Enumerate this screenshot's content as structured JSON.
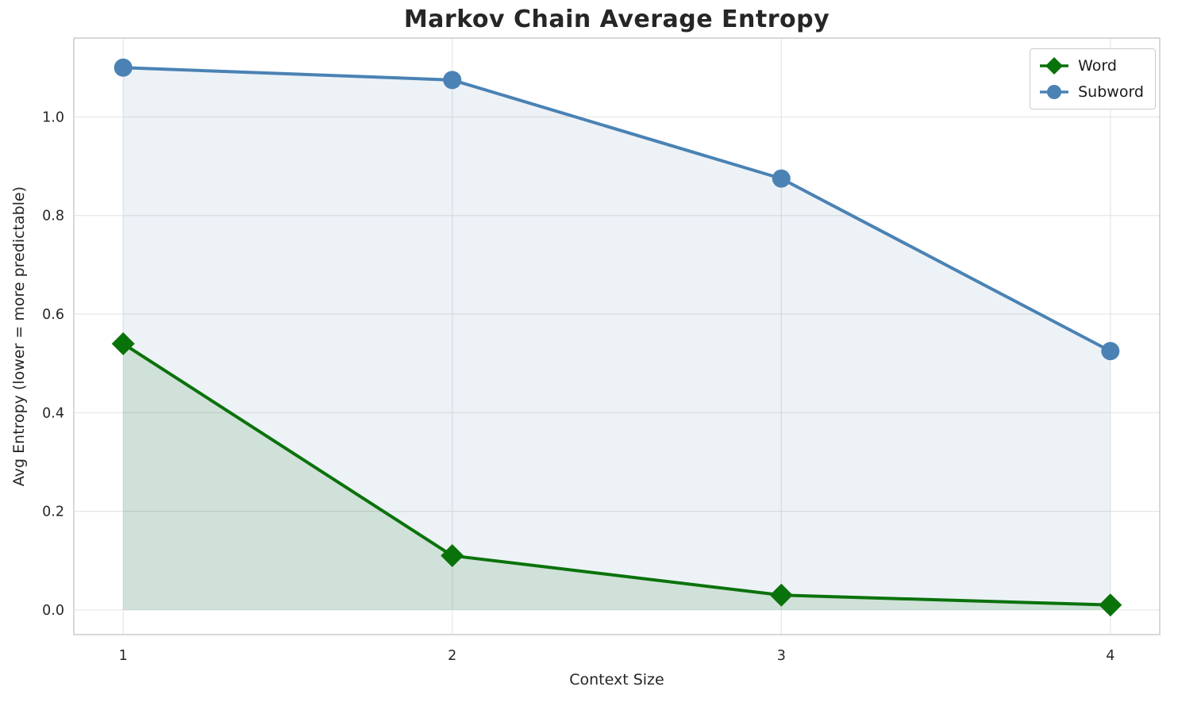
{
  "chart_data": {
    "type": "line",
    "title": "Markov Chain Average Entropy",
    "xlabel": "Context Size",
    "ylabel": "Avg Entropy (lower = more predictable)",
    "x": [
      1,
      2,
      3,
      4
    ],
    "series": [
      {
        "name": "Word",
        "values": [
          0.54,
          0.11,
          0.03,
          0.01
        ],
        "color": "#0a720a",
        "marker": "diamond",
        "fill_opacity": 0.13,
        "line_width": 4
      },
      {
        "name": "Subword",
        "values": [
          1.1,
          1.075,
          0.875,
          0.525
        ],
        "color": "#4a82b4",
        "marker": "circle",
        "fill_opacity": 0.1,
        "line_width": 4
      }
    ],
    "xlim": [
      0.85,
      4.15
    ],
    "ylim": [
      -0.05,
      1.16
    ],
    "xticks": [
      1,
      2,
      3,
      4
    ],
    "xtick_labels": [
      "1",
      "2",
      "3",
      "4"
    ],
    "yticks": [
      0,
      0.2,
      0.4,
      0.6,
      0.8,
      1
    ],
    "ytick_labels": [
      "0.0",
      "0.2",
      "0.4",
      "0.6",
      "0.8",
      "1.0"
    ],
    "grid": true,
    "fill_baseline": 0,
    "legend_position": "upper right"
  },
  "colors": {
    "grid": "#e6e6e6",
    "spine": "#cccccc",
    "text": "#262626"
  }
}
